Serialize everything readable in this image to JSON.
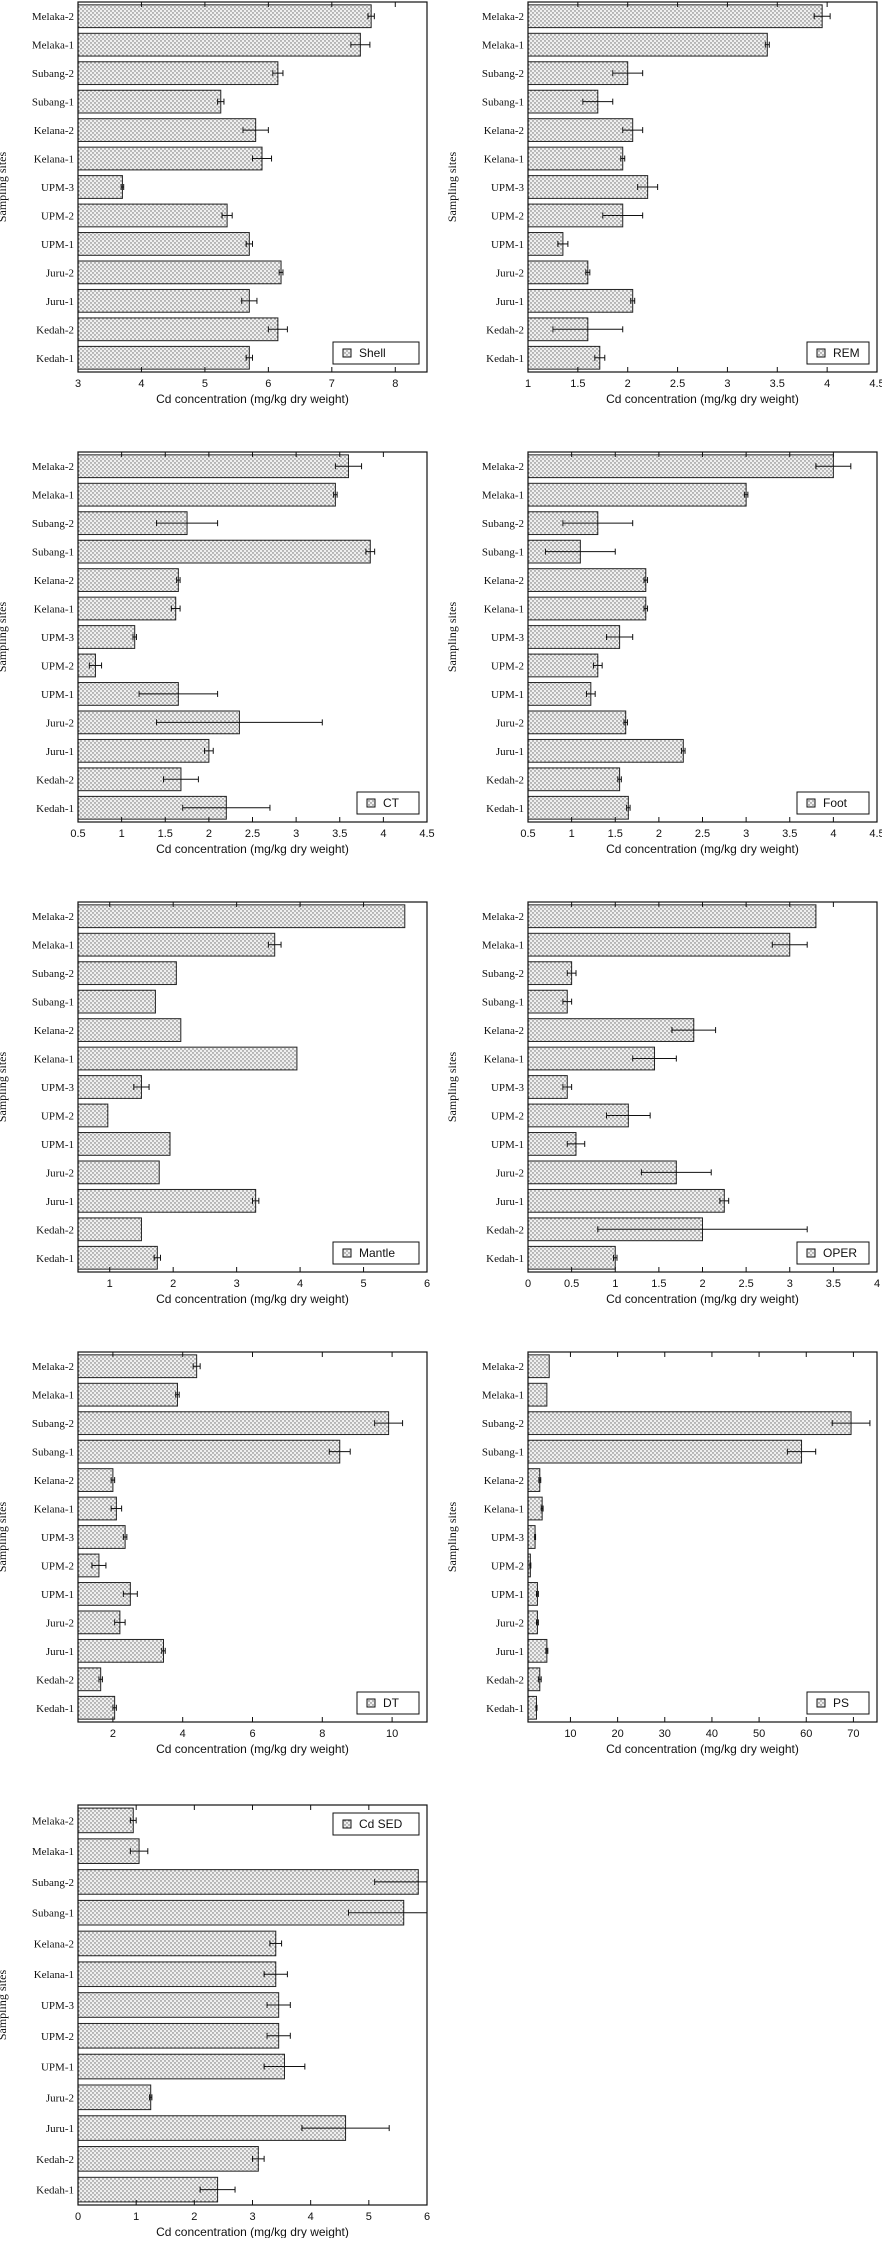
{
  "sites": [
    "Melaka-2",
    "Melaka-1",
    "Subang-2",
    "Subang-1",
    "Kelana-2",
    "Kelana-1",
    "UPM-3",
    "UPM-2",
    "UPM-1",
    "Juru-2",
    "Juru-1",
    "Kedah-2",
    "Kedah-1"
  ],
  "common": {
    "xlabel": "Cd concentration (mg/kg dry weight)",
    "ylabel": "Sampling sites",
    "bar_fill": "#d9d9d9",
    "bar_stroke": "#222222"
  },
  "chart_data": [
    {
      "type": "bar",
      "orientation": "horizontal",
      "title": "Shell",
      "legend_position": "bottom-right",
      "categories": [
        "Melaka-2",
        "Melaka-1",
        "Subang-2",
        "Subang-1",
        "Kelana-2",
        "Kelana-1",
        "UPM-3",
        "UPM-2",
        "UPM-1",
        "Juru-2",
        "Juru-1",
        "Kedah-2",
        "Kedah-1"
      ],
      "xlim": [
        3,
        8.5
      ],
      "xticks": [
        3,
        4,
        5,
        6,
        7,
        8
      ],
      "xtick_labels": [
        "3",
        "4",
        "5",
        "6",
        "7",
        "8"
      ],
      "values": [
        7.62,
        7.45,
        6.15,
        5.25,
        5.8,
        5.9,
        3.7,
        5.35,
        5.7,
        6.2,
        5.7,
        6.15,
        5.7
      ],
      "errors": [
        0.05,
        0.15,
        0.08,
        0.05,
        0.2,
        0.15,
        0.02,
        0.08,
        0.05,
        0.03,
        0.12,
        0.15,
        0.05
      ]
    },
    {
      "type": "bar",
      "orientation": "horizontal",
      "title": "REM",
      "legend_position": "bottom-right",
      "categories": [
        "Melaka-2",
        "Melaka-1",
        "Subang-2",
        "Subang-1",
        "Kelana-2",
        "Kelana-1",
        "UPM-3",
        "UPM-2",
        "UPM-1",
        "Juru-2",
        "Juru-1",
        "Kedah-2",
        "Kedah-1"
      ],
      "xlim": [
        1,
        4.5
      ],
      "xticks": [
        1,
        1.5,
        2,
        2.5,
        3,
        3.5,
        4,
        4.5
      ],
      "xtick_labels": [
        "1",
        "1.5",
        "2",
        "2.5",
        "3",
        "3.5",
        "4",
        "4.5"
      ],
      "values": [
        3.95,
        3.4,
        2.0,
        1.7,
        2.05,
        1.95,
        2.2,
        1.95,
        1.35,
        1.6,
        2.05,
        1.6,
        1.72
      ],
      "errors": [
        0.08,
        0.02,
        0.15,
        0.15,
        0.1,
        0.02,
        0.1,
        0.2,
        0.05,
        0.02,
        0.02,
        0.35,
        0.05
      ]
    },
    {
      "type": "bar",
      "orientation": "horizontal",
      "title": "CT",
      "legend_position": "bottom-right",
      "categories": [
        "Melaka-2",
        "Melaka-1",
        "Subang-2",
        "Subang-1",
        "Kelana-2",
        "Kelana-1",
        "UPM-3",
        "UPM-2",
        "UPM-1",
        "Juru-2",
        "Juru-1",
        "Kedah-2",
        "Kedah-1"
      ],
      "xlim": [
        0.5,
        4.5
      ],
      "xticks": [
        0.5,
        1,
        1.5,
        2,
        2.5,
        3,
        3.5,
        4,
        4.5
      ],
      "xtick_labels": [
        "0.5",
        "1",
        "1.5",
        "2",
        "2.5",
        "3",
        "3.5",
        "4",
        "4.5"
      ],
      "values": [
        3.6,
        3.45,
        1.75,
        3.85,
        1.65,
        1.62,
        1.15,
        0.7,
        1.65,
        2.35,
        2.0,
        1.68,
        2.2
      ],
      "errors": [
        0.15,
        0.02,
        0.35,
        0.05,
        0.02,
        0.05,
        0.02,
        0.07,
        0.45,
        0.95,
        0.05,
        0.2,
        0.5
      ]
    },
    {
      "type": "bar",
      "orientation": "horizontal",
      "title": "Foot",
      "legend_position": "bottom-right",
      "categories": [
        "Melaka-2",
        "Melaka-1",
        "Subang-2",
        "Subang-1",
        "Kelana-2",
        "Kelana-1",
        "UPM-3",
        "UPM-2",
        "UPM-1",
        "Juru-2",
        "Juru-1",
        "Kedah-2",
        "Kedah-1"
      ],
      "xlim": [
        0.5,
        4.5
      ],
      "xticks": [
        0.5,
        1,
        1.5,
        2,
        2.5,
        3,
        3.5,
        4,
        4.5
      ],
      "xtick_labels": [
        "0.5",
        "1",
        "1.5",
        "2",
        "2.5",
        "3",
        "3.5",
        "4",
        "4.5"
      ],
      "values": [
        4.0,
        3.0,
        1.3,
        1.1,
        1.85,
        1.85,
        1.55,
        1.3,
        1.22,
        1.62,
        2.28,
        1.55,
        1.65
      ],
      "errors": [
        0.2,
        0.02,
        0.4,
        0.4,
        0.02,
        0.02,
        0.15,
        0.05,
        0.05,
        0.02,
        0.02,
        0.02,
        0.02
      ]
    },
    {
      "type": "bar",
      "orientation": "horizontal",
      "title": "Mantle",
      "legend_position": "bottom-right",
      "categories": [
        "Melaka-2",
        "Melaka-1",
        "Subang-2",
        "Subang-1",
        "Kelana-2",
        "Kelana-1",
        "UPM-3",
        "UPM-2",
        "UPM-1",
        "Juru-2",
        "Juru-1",
        "Kedah-2",
        "Kedah-1"
      ],
      "xlim": [
        0.5,
        6
      ],
      "xticks": [
        1,
        2,
        3,
        4,
        5,
        6
      ],
      "xtick_labels": [
        "1",
        "2",
        "3",
        "4",
        "5",
        "6"
      ],
      "values": [
        5.65,
        3.6,
        2.05,
        1.72,
        2.12,
        3.95,
        1.5,
        0.97,
        1.95,
        1.78,
        3.3,
        1.5,
        1.75
      ],
      "errors": [
        0,
        0.1,
        0,
        0,
        0,
        0,
        0.12,
        0,
        0,
        0,
        0.05,
        0,
        0.05
      ]
    },
    {
      "type": "bar",
      "orientation": "horizontal",
      "title": "OPER",
      "legend_position": "bottom-right",
      "categories": [
        "Melaka-2",
        "Melaka-1",
        "Subang-2",
        "Subang-1",
        "Kelana-2",
        "Kelana-1",
        "UPM-3",
        "UPM-2",
        "UPM-1",
        "Juru-2",
        "Juru-1",
        "Kedah-2",
        "Kedah-1"
      ],
      "xlim": [
        0,
        4
      ],
      "xticks": [
        0,
        0.5,
        1,
        1.5,
        2,
        2.5,
        3,
        3.5,
        4
      ],
      "xtick_labels": [
        "0",
        "0.5",
        "1",
        "1.5",
        "2",
        "2.5",
        "3",
        "3.5",
        "4"
      ],
      "values": [
        3.3,
        3.0,
        0.5,
        0.45,
        1.9,
        1.45,
        0.45,
        1.15,
        0.55,
        1.7,
        2.25,
        2.0,
        1.0
      ],
      "errors": [
        0,
        0.2,
        0.05,
        0.05,
        0.25,
        0.25,
        0.05,
        0.25,
        0.1,
        0.4,
        0.05,
        1.2,
        0.02
      ]
    },
    {
      "type": "bar",
      "orientation": "horizontal",
      "title": "DT",
      "legend_position": "bottom-right",
      "categories": [
        "Melaka-2",
        "Melaka-1",
        "Subang-2",
        "Subang-1",
        "Kelana-2",
        "Kelana-1",
        "UPM-3",
        "UPM-2",
        "UPM-1",
        "Juru-2",
        "Juru-1",
        "Kedah-2",
        "Kedah-1"
      ],
      "xlim": [
        1,
        11
      ],
      "xticks": [
        2,
        4,
        6,
        8,
        10
      ],
      "xtick_labels": [
        "2",
        "4",
        "6",
        "8",
        "10"
      ],
      "values": [
        4.4,
        3.85,
        9.9,
        8.5,
        2.0,
        2.1,
        2.35,
        1.6,
        2.5,
        2.2,
        3.45,
        1.65,
        2.05
      ],
      "errors": [
        0.1,
        0.05,
        0.4,
        0.3,
        0.05,
        0.15,
        0.05,
        0.2,
        0.2,
        0.15,
        0.05,
        0.05,
        0.05
      ]
    },
    {
      "type": "bar",
      "orientation": "horizontal",
      "title": "PS",
      "legend_position": "bottom-right",
      "categories": [
        "Melaka-2",
        "Melaka-1",
        "Subang-2",
        "Subang-1",
        "Kelana-2",
        "Kelana-1",
        "UPM-3",
        "UPM-2",
        "UPM-1",
        "Juru-2",
        "Juru-1",
        "Kedah-2",
        "Kedah-1"
      ],
      "xlim": [
        1,
        75
      ],
      "xticks": [
        10,
        20,
        30,
        40,
        50,
        60,
        70
      ],
      "xtick_labels": [
        "10",
        "20",
        "30",
        "40",
        "50",
        "60",
        "70"
      ],
      "values": [
        5.5,
        5.0,
        69.5,
        59.0,
        3.5,
        4.0,
        2.5,
        1.5,
        3.0,
        3.0,
        5.0,
        3.5,
        2.8
      ],
      "errors": [
        0,
        0,
        4.0,
        3.0,
        0.2,
        0.2,
        0.1,
        0.1,
        0.2,
        0.2,
        0.2,
        0.3,
        0.1
      ]
    },
    {
      "type": "bar",
      "orientation": "horizontal",
      "title": "Cd SED",
      "legend_position": "top-right",
      "categories": [
        "Melaka-2",
        "Melaka-1",
        "Subang-2",
        "Subang-1",
        "Kelana-2",
        "Kelana-1",
        "UPM-3",
        "UPM-2",
        "UPM-1",
        "Juru-2",
        "Juru-1",
        "Kedah-2",
        "Kedah-1"
      ],
      "xlim": [
        0,
        6
      ],
      "xticks": [
        0,
        1,
        2,
        3,
        4,
        5,
        6
      ],
      "xtick_labels": [
        "0",
        "1",
        "2",
        "3",
        "4",
        "5",
        "6"
      ],
      "values": [
        0.95,
        1.05,
        5.85,
        5.6,
        3.4,
        3.4,
        3.45,
        3.45,
        3.55,
        1.25,
        4.6,
        3.1,
        2.4
      ],
      "errors": [
        0.05,
        0.15,
        0.75,
        0.95,
        0.1,
        0.2,
        0.2,
        0.2,
        0.35,
        0.02,
        0.75,
        0.1,
        0.3
      ]
    }
  ]
}
